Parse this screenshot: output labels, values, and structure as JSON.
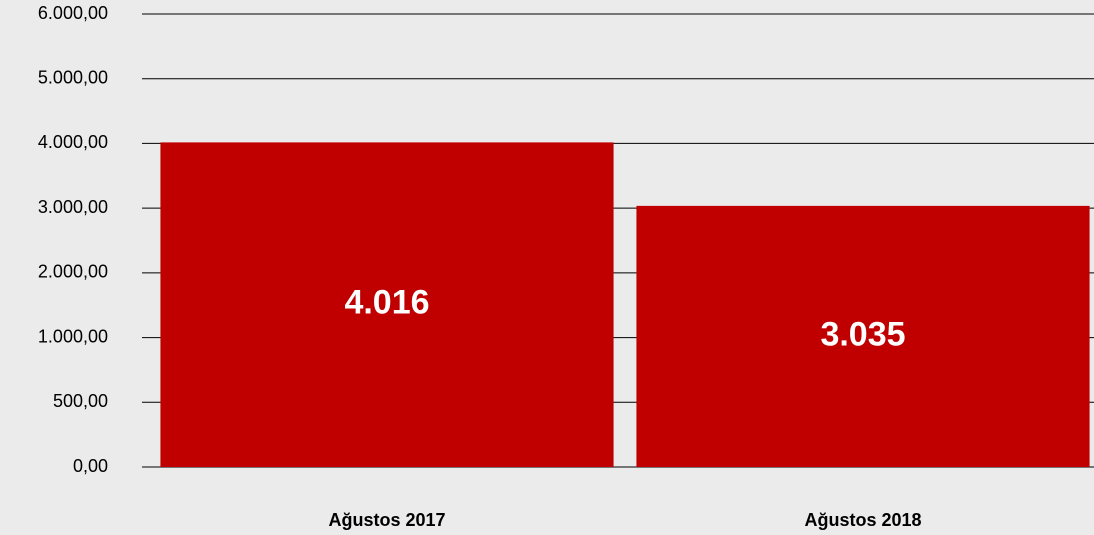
{
  "chart_data": {
    "type": "bar",
    "categories": [
      "Ağustos 2017",
      "Ağustos 2018"
    ],
    "values": [
      4016,
      3035
    ],
    "value_labels": [
      "4.016",
      "3.035"
    ],
    "color": "#c00000",
    "ylim": [
      0,
      6000
    ],
    "yticks": [
      {
        "value": 0,
        "label": "0,00"
      },
      {
        "value": 500,
        "label": "500,00"
      },
      {
        "value": 1000,
        "label": "1.000,00"
      },
      {
        "value": 2000,
        "label": "2.000,00"
      },
      {
        "value": 3000,
        "label": "3.000,00"
      },
      {
        "value": 4000,
        "label": "4.000,00"
      },
      {
        "value": 5000,
        "label": "5.000,00"
      },
      {
        "value": 6000,
        "label": "6.000,00"
      }
    ],
    "grid": true
  }
}
